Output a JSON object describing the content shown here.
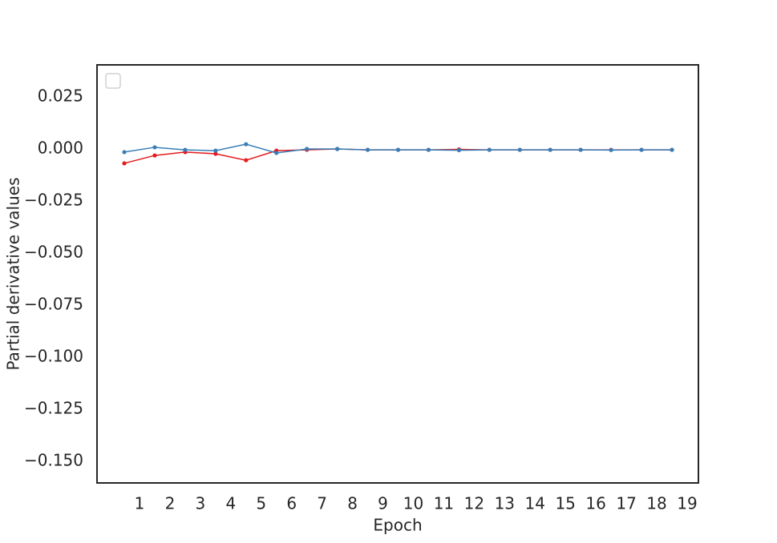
{
  "chart_data": {
    "type": "line",
    "x_label": "Epoch",
    "y_label": "Partial derivative values",
    "x": [
      0.5,
      1.5,
      2.5,
      3.5,
      4.5,
      5.5,
      6.5,
      7.5,
      8.5,
      9.5,
      10.5,
      11.5,
      12.5,
      13.5,
      14.5,
      15.5,
      16.5,
      17.5,
      18.5
    ],
    "series": [
      {
        "color": "#e41a1c",
        "values": [
          -0.0069,
          -0.0031,
          -0.0015,
          -0.0023,
          -0.0054,
          -0.0008,
          -0.0004,
          0.0,
          -0.0004,
          -0.0004,
          -0.0004,
          -0.0002,
          -0.0004,
          -0.0004,
          -0.0004,
          -0.0004,
          -0.0004,
          -0.0004,
          -0.0004
        ]
      },
      {
        "color": "#377eb8",
        "values": [
          -0.0015,
          0.0008,
          -0.0004,
          -0.0008,
          0.0023,
          -0.0019,
          0.0,
          0.0,
          -0.0004,
          -0.0004,
          -0.0004,
          -0.0006,
          -0.0004,
          -0.0004,
          -0.0004,
          -0.0004,
          -0.0005,
          -0.0004,
          -0.0004
        ]
      }
    ],
    "xlim": [
      -0.397,
      19.37
    ],
    "xticks": [
      1,
      2,
      3,
      4,
      5,
      6,
      7,
      8,
      9,
      10,
      11,
      12,
      13,
      14,
      15,
      16,
      17,
      18,
      19
    ],
    "ylim": [
      -0.1604,
      0.0404
    ],
    "yticks": [
      {
        "value": 0.025,
        "label": "0.025"
      },
      {
        "value": 0,
        "label": "0.000"
      },
      {
        "value": -0.025,
        "label": "−0.025"
      },
      {
        "value": -0.05,
        "label": "−0.050"
      },
      {
        "value": -0.075,
        "label": "−0.075"
      },
      {
        "value": -0.1,
        "label": "−0.100"
      },
      {
        "value": -0.125,
        "label": "−0.125"
      },
      {
        "value": -0.15,
        "label": "−0.150"
      }
    ]
  }
}
